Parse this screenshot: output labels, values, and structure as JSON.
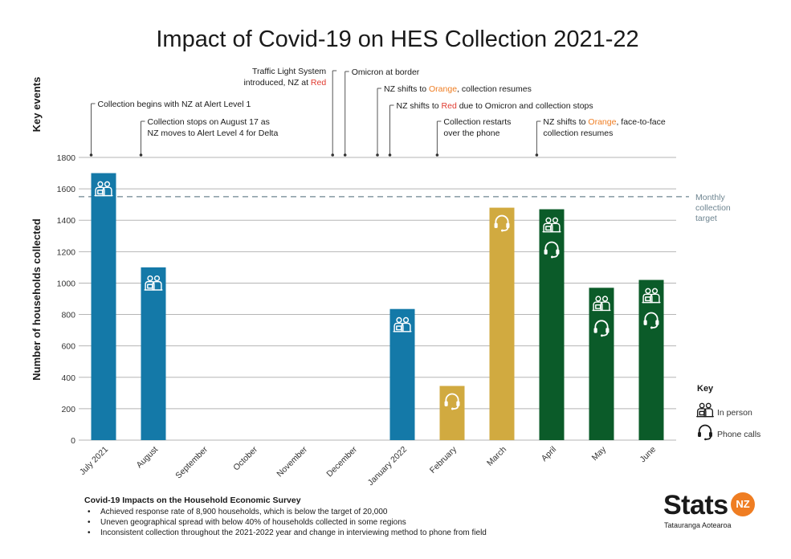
{
  "chart_data": {
    "type": "bar",
    "title": "Impact of Covid-19 on HES Collection 2021-22",
    "xlabel": "",
    "ylabel": "Number of households collected",
    "events_label": "Key events",
    "ylim": [
      0,
      1800
    ],
    "yticks": [
      0,
      200,
      400,
      600,
      800,
      1000,
      1200,
      1400,
      1600,
      1800
    ],
    "grid": true,
    "categories": [
      "July 2021",
      "August",
      "September",
      "October",
      "November",
      "December",
      "January 2022",
      "February",
      "March",
      "April",
      "May",
      "June"
    ],
    "values": [
      1700,
      1100,
      0,
      0,
      0,
      0,
      835,
      345,
      1480,
      1470,
      970,
      1020
    ],
    "bar_colors": [
      "#1479a8",
      "#1479a8",
      "#1479a8",
      "#1479a8",
      "#1479a8",
      "#1479a8",
      "#1479a8",
      "#d1aa40",
      "#d1aa40",
      "#0b5b29",
      "#0b5b29",
      "#0b5b29"
    ],
    "methods": [
      [
        "in-person"
      ],
      [
        "in-person"
      ],
      [],
      [],
      [],
      [],
      [
        "in-person"
      ],
      [
        "phone"
      ],
      [
        "phone"
      ],
      [
        "in-person",
        "phone"
      ],
      [
        "in-person",
        "phone"
      ],
      [
        "in-person",
        "phone"
      ]
    ],
    "target": {
      "value": 1550,
      "label": [
        "Monthly",
        "collection",
        "target"
      ]
    },
    "events": [
      {
        "month": 0.25,
        "lines": [
          [
            {
              "t": "Collection begins with NZ at Alert Level 1"
            }
          ]
        ]
      },
      {
        "month": 1.25,
        "lines": [
          [
            {
              "t": "Collection stops on August 17 as"
            }
          ],
          [
            {
              "t": "NZ moves to Alert Level 4 for Delta"
            }
          ]
        ]
      },
      {
        "month": 5.1,
        "lines": [
          [
            {
              "t": "Traffic Light System"
            }
          ],
          [
            {
              "t": "introduced, NZ at "
            },
            {
              "t": "Red",
              "c": "#e03a2f"
            }
          ]
        ]
      },
      {
        "month": 5.35,
        "lines": [
          [
            {
              "t": "Omicron at border"
            }
          ]
        ]
      },
      {
        "month": 6.0,
        "lines": [
          [
            {
              "t": "NZ shifts to "
            },
            {
              "t": "Orange",
              "c": "#ef7d22"
            },
            {
              "t": ", collection resumes"
            }
          ]
        ]
      },
      {
        "month": 6.25,
        "lines": [
          [
            {
              "t": "NZ shifts to "
            },
            {
              "t": "Red",
              "c": "#e03a2f"
            },
            {
              "t": " due to Omicron and collection stops"
            }
          ]
        ]
      },
      {
        "month": 7.2,
        "lines": [
          [
            {
              "t": "Collection restarts"
            }
          ],
          [
            {
              "t": "over the phone"
            }
          ]
        ]
      },
      {
        "month": 9.2,
        "lines": [
          [
            {
              "t": "NZ shifts to "
            },
            {
              "t": "Orange",
              "c": "#ef7d22"
            },
            {
              "t": ", face-to-face"
            }
          ],
          [
            {
              "t": "collection resumes"
            }
          ]
        ]
      }
    ],
    "legend": {
      "title": "Key",
      "position": "right",
      "in_person_label": "In person",
      "phone_label": "Phone calls"
    }
  },
  "notes": {
    "title": "Covid-19 Impacts on the Household Economic Survey",
    "items": [
      "Achieved response rate of 8,900 households, which is below the target of 20,000",
      "Uneven geographical spread with below 40% of households collected in some regions",
      "Inconsistent collection throughout the 2021-2022 year and change in interviewing method to phone from field"
    ]
  },
  "logo": {
    "word": "Stats",
    "badge": "NZ",
    "tagline": "Tatauranga Aotearoa"
  },
  "colors": {
    "grid": "#b5b5b5",
    "target_line": "#6e8591",
    "in_person": "#1479a8",
    "phone": "#d1aa40",
    "both": "#0b5b29"
  }
}
